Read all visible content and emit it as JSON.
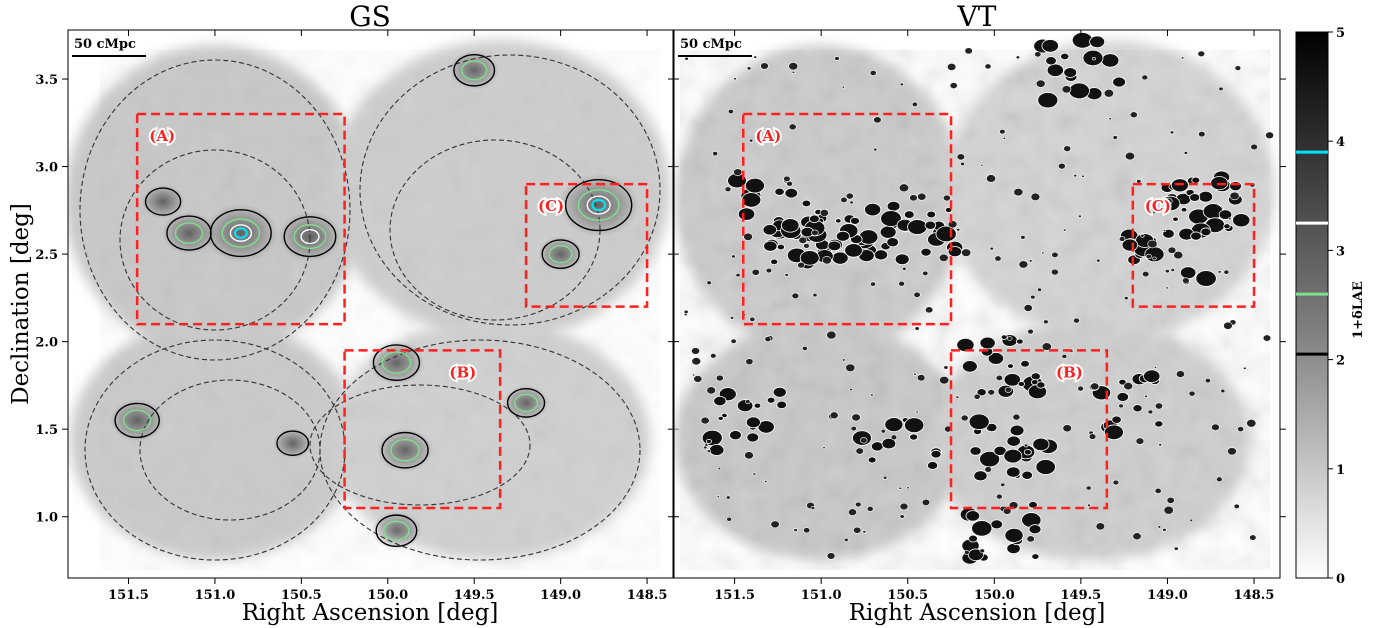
{
  "chart_data": [
    {
      "type": "heatmap",
      "title": "GS",
      "xlabel": "Right Ascension [deg]",
      "ylabel": "Declination [deg]",
      "xlim": [
        151.85,
        148.35
      ],
      "ylim": [
        0.65,
        3.78
      ],
      "x_ticks": [
        151.5,
        151.0,
        150.5,
        150.0,
        149.5,
        149.0,
        148.5
      ],
      "x_tick_labels": [
        "151.5",
        "151.0",
        "150.5",
        "150.0",
        "149.5",
        "149.0",
        "148.5"
      ],
      "y_ticks": [
        1.0,
        1.5,
        2.0,
        2.5,
        3.0,
        3.5
      ],
      "y_tick_labels": [
        "1.0",
        "1.5",
        "2.0",
        "2.5",
        "3.0",
        "3.5"
      ],
      "scale_bar_label": "50 cMpc",
      "regions": [
        {
          "label": "(A)",
          "ra_range": [
            151.45,
            150.25
          ],
          "dec_range": [
            2.1,
            3.3
          ]
        },
        {
          "label": "(B)",
          "ra_range": [
            150.25,
            149.35
          ],
          "dec_range": [
            1.05,
            1.95
          ]
        },
        {
          "label": "(C)",
          "ra_range": [
            149.2,
            148.5
          ],
          "dec_range": [
            2.2,
            2.9
          ]
        }
      ],
      "overdensities": [
        {
          "ra": 150.85,
          "dec": 2.62,
          "level": 3.9
        },
        {
          "ra": 150.45,
          "dec": 2.6,
          "level": 3.4
        },
        {
          "ra": 151.15,
          "dec": 2.62,
          "level": 3.0
        },
        {
          "ra": 148.78,
          "dec": 2.78,
          "level": 4.2
        },
        {
          "ra": 149.0,
          "dec": 2.5,
          "level": 2.6
        },
        {
          "ra": 149.95,
          "dec": 1.88,
          "level": 3.1
        },
        {
          "ra": 149.9,
          "dec": 1.38,
          "level": 3.1
        },
        {
          "ra": 151.45,
          "dec": 1.55,
          "level": 3.0
        },
        {
          "ra": 150.55,
          "dec": 1.42,
          "level": 2.3
        },
        {
          "ra": 149.2,
          "dec": 1.65,
          "level": 2.6
        },
        {
          "ra": 149.5,
          "dec": 3.55,
          "level": 2.8
        },
        {
          "ra": 149.95,
          "dec": 0.92,
          "level": 2.8
        },
        {
          "ra": 151.3,
          "dec": 2.8,
          "level": 2.5
        }
      ]
    },
    {
      "type": "heatmap",
      "title": "VT",
      "xlabel": "Right Ascension [deg]",
      "xlim": [
        151.85,
        148.35
      ],
      "ylim": [
        0.65,
        3.78
      ],
      "x_ticks": [
        151.5,
        151.0,
        150.5,
        150.0,
        149.5,
        149.0,
        148.5
      ],
      "x_tick_labels": [
        "151.5",
        "151.0",
        "150.5",
        "150.0",
        "149.5",
        "149.0",
        "148.5"
      ],
      "scale_bar_label": "50 cMpc",
      "regions": [
        {
          "label": "(A)",
          "ra_range": [
            151.45,
            150.25
          ],
          "dec_range": [
            2.1,
            3.3
          ]
        },
        {
          "label": "(B)",
          "ra_range": [
            150.25,
            149.35
          ],
          "dec_range": [
            1.05,
            1.95
          ]
        },
        {
          "label": "(C)",
          "ra_range": [
            149.2,
            148.5
          ],
          "dec_range": [
            2.2,
            2.9
          ]
        }
      ]
    }
  ],
  "colorbar": {
    "label": "1+δLAE",
    "range": [
      0,
      5
    ],
    "ticks": [
      0,
      1,
      2,
      3,
      4,
      5
    ],
    "tick_labels": [
      "0",
      "1",
      "2",
      "3",
      "4",
      "5"
    ],
    "contour_levels": [
      {
        "value": 2.05,
        "color": "#000000"
      },
      {
        "value": 2.6,
        "color": "#7ee08a"
      },
      {
        "value": 3.25,
        "color": "#ffffff"
      },
      {
        "value": 3.9,
        "color": "#00e5ff"
      }
    ]
  },
  "colors": {
    "region_box": "#ff2020",
    "contour_cyan": "#00e5ff",
    "contour_white": "#ffffff",
    "contour_green": "#7ee08a",
    "contour_black": "#000000"
  }
}
